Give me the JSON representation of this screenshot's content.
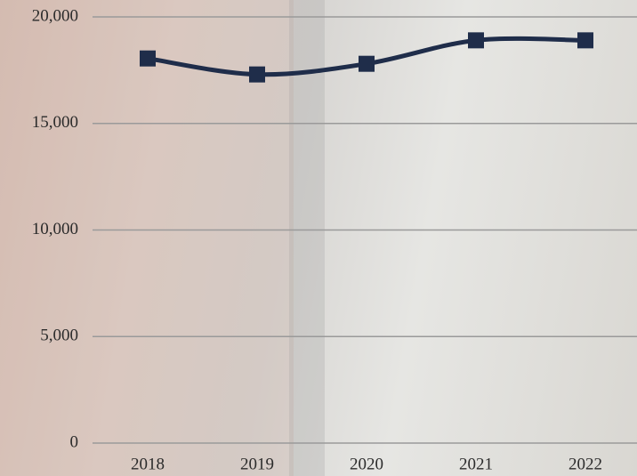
{
  "chart_data": {
    "type": "line",
    "categories": [
      "2018",
      "2019",
      "2020",
      "2021",
      "2022"
    ],
    "values": [
      18050,
      17300,
      17800,
      18900,
      18900
    ],
    "color": "#1f2d4a",
    "ylim": [
      0,
      20000
    ],
    "yticks": [
      {
        "value": 0,
        "label": "0"
      },
      {
        "value": 5000,
        "label": "5,000"
      },
      {
        "value": 10000,
        "label": "10,000"
      },
      {
        "value": 15000,
        "label": "15,000"
      },
      {
        "value": 20000,
        "label": "20,000"
      }
    ],
    "grid": true
  }
}
